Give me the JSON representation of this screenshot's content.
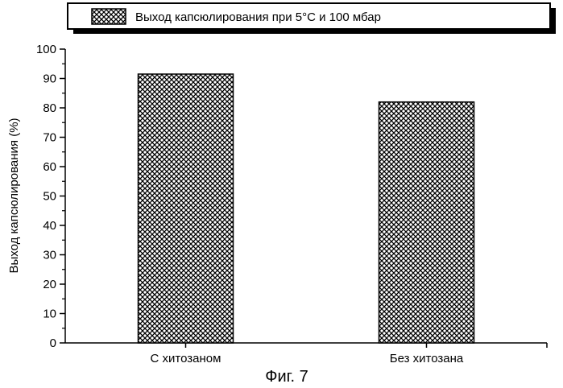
{
  "chart_data": {
    "type": "bar",
    "categories": [
      "С хитозаном",
      "Без хитозана"
    ],
    "series": [
      {
        "name": "Выход капсюлирования при 5°C и 100 мбар",
        "values": [
          91.5,
          82
        ]
      }
    ],
    "title": "",
    "xlabel": "",
    "ylabel": "Выход капсюлирования (%)",
    "ylim": [
      0,
      100
    ],
    "yticks": [
      0,
      10,
      20,
      30,
      40,
      50,
      60,
      70,
      80,
      90,
      100
    ],
    "grid": false,
    "legend_position": "top",
    "bar_fill": "crosshatch",
    "caption": "Фиг. 7"
  }
}
